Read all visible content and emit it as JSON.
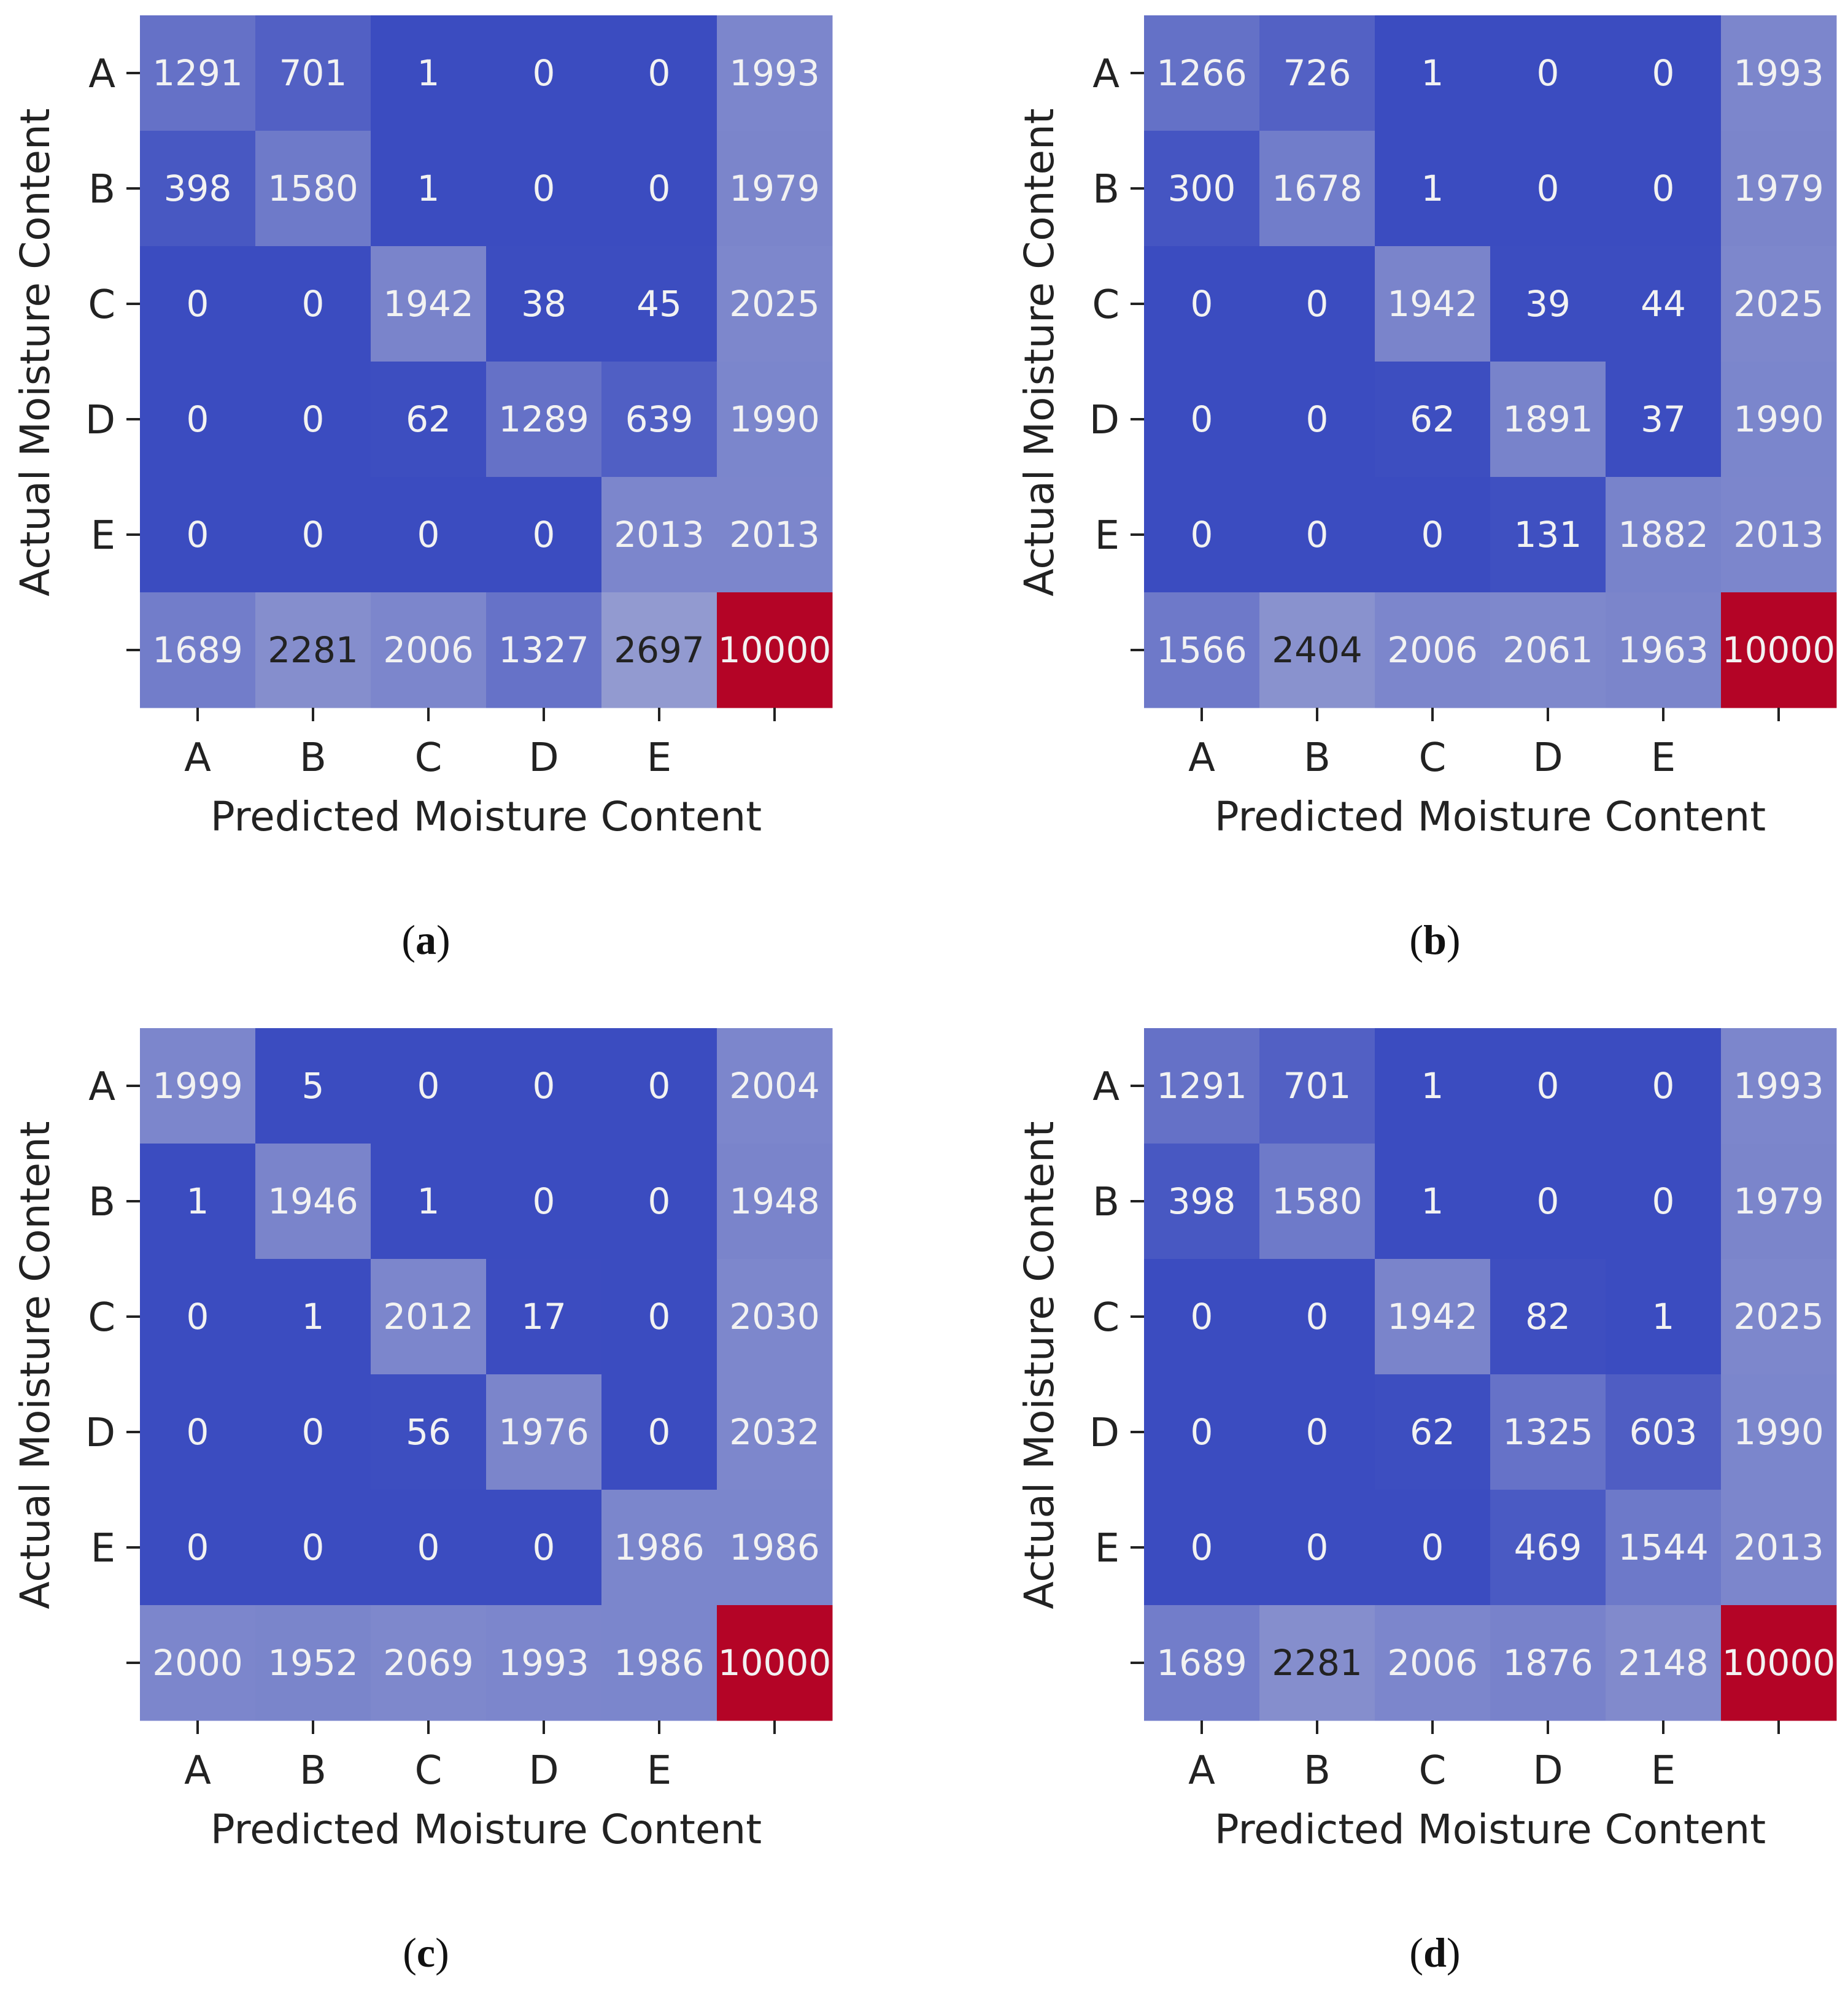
{
  "chart_data": [
    {
      "type": "heatmap",
      "panel": "a",
      "xlabel": "Predicted Moisture Content",
      "ylabel": "Actual Moisture Content",
      "x_categories": [
        "A",
        "B",
        "C",
        "D",
        "E",
        ""
      ],
      "y_categories": [
        "A",
        "B",
        "C",
        "D",
        "E",
        ""
      ],
      "values": [
        [
          1291,
          701,
          1,
          0,
          0,
          1993
        ],
        [
          398,
          1580,
          1,
          0,
          0,
          1979
        ],
        [
          0,
          0,
          1942,
          38,
          45,
          2025
        ],
        [
          0,
          0,
          62,
          1289,
          639,
          1990
        ],
        [
          0,
          0,
          0,
          0,
          2013,
          2013
        ],
        [
          1689,
          2281,
          2006,
          1327,
          2697,
          10000
        ]
      ]
    },
    {
      "type": "heatmap",
      "panel": "b",
      "xlabel": "Predicted Moisture Content",
      "ylabel": "Actual Moisture Content",
      "x_categories": [
        "A",
        "B",
        "C",
        "D",
        "E",
        ""
      ],
      "y_categories": [
        "A",
        "B",
        "C",
        "D",
        "E",
        ""
      ],
      "values": [
        [
          1266,
          726,
          1,
          0,
          0,
          1993
        ],
        [
          300,
          1678,
          1,
          0,
          0,
          1979
        ],
        [
          0,
          0,
          1942,
          39,
          44,
          2025
        ],
        [
          0,
          0,
          62,
          1891,
          37,
          1990
        ],
        [
          0,
          0,
          0,
          131,
          1882,
          2013
        ],
        [
          1566,
          2404,
          2006,
          2061,
          1963,
          10000
        ]
      ]
    },
    {
      "type": "heatmap",
      "panel": "c",
      "xlabel": "Predicted Moisture Content",
      "ylabel": "Actual Moisture Content",
      "x_categories": [
        "A",
        "B",
        "C",
        "D",
        "E",
        ""
      ],
      "y_categories": [
        "A",
        "B",
        "C",
        "D",
        "E",
        ""
      ],
      "values": [
        [
          1999,
          5,
          0,
          0,
          0,
          2004
        ],
        [
          1,
          1946,
          1,
          0,
          0,
          1948
        ],
        [
          0,
          1,
          2012,
          17,
          0,
          2030
        ],
        [
          0,
          0,
          56,
          1976,
          0,
          2032
        ],
        [
          0,
          0,
          0,
          0,
          1986,
          1986
        ],
        [
          2000,
          1952,
          2069,
          1993,
          1986,
          10000
        ]
      ]
    },
    {
      "type": "heatmap",
      "panel": "d",
      "xlabel": "Predicted Moisture Content",
      "ylabel": "Actual Moisture Content",
      "x_categories": [
        "A",
        "B",
        "C",
        "D",
        "E",
        ""
      ],
      "y_categories": [
        "A",
        "B",
        "C",
        "D",
        "E",
        ""
      ],
      "values": [
        [
          1291,
          701,
          1,
          0,
          0,
          1993
        ],
        [
          398,
          1580,
          1,
          0,
          0,
          1979
        ],
        [
          0,
          0,
          1942,
          82,
          1,
          2025
        ],
        [
          0,
          0,
          62,
          1325,
          603,
          1990
        ],
        [
          0,
          0,
          0,
          469,
          1544,
          2013
        ],
        [
          1689,
          2281,
          2006,
          1876,
          2148,
          10000
        ]
      ]
    }
  ],
  "captions": [
    "a",
    "b",
    "c",
    "d"
  ],
  "colors": {
    "cmap_low": "#3b4cc0",
    "cmap_mid": "#dddddd",
    "cmap_high": "#b40426",
    "text_light": "#f2f2f2",
    "text_dark": "#222222"
  }
}
